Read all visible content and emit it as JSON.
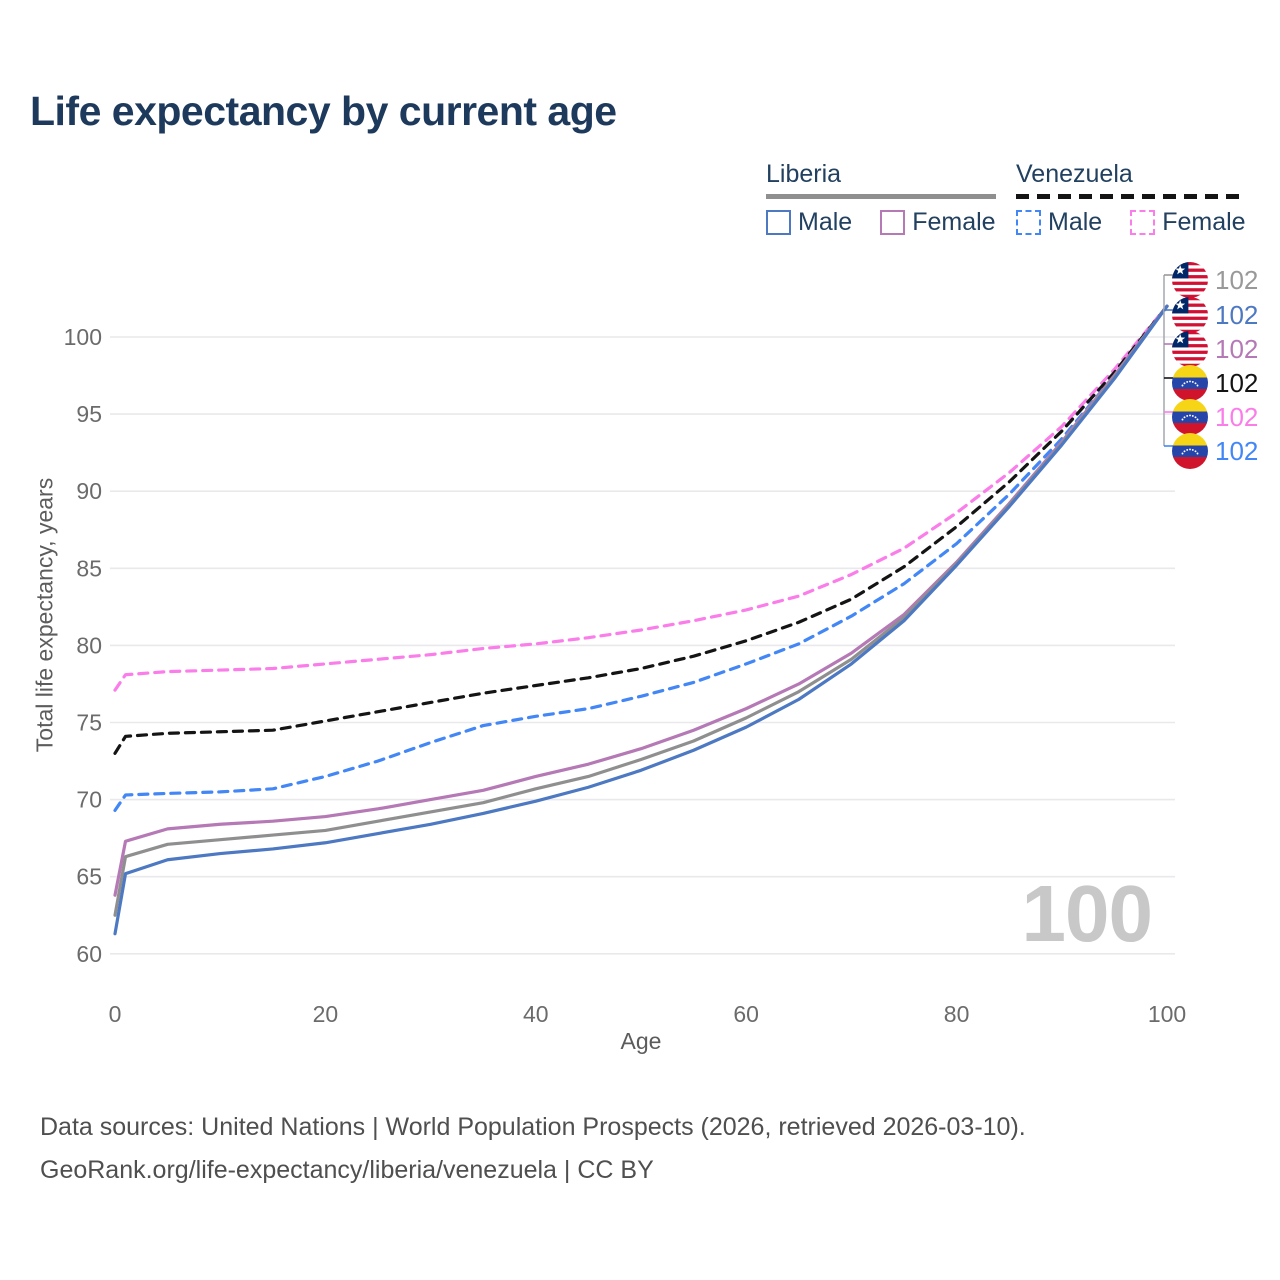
{
  "title": "Life expectancy by current age",
  "legend": {
    "groups": [
      {
        "country": "Liberia",
        "line_style": "solid",
        "header_line_color": "#8f8f8f",
        "items": [
          {
            "label": "Male",
            "color": "#4d78c2",
            "dashed": false
          },
          {
            "label": "Female",
            "color": "#b579b5",
            "dashed": false
          }
        ]
      },
      {
        "country": "Venezuela",
        "line_style": "dashed",
        "header_line_color": "#141414",
        "items": [
          {
            "label": "Male",
            "color": "#4287f5",
            "dashed": true
          },
          {
            "label": "Female",
            "color": "#fa7de9",
            "dashed": true
          }
        ]
      }
    ]
  },
  "chart_data": {
    "type": "line",
    "title": "Life expectancy by current age",
    "xlabel": "Age",
    "ylabel": "Total life expectancy, years",
    "xlim": [
      0,
      100
    ],
    "ylim": [
      60,
      100
    ],
    "x_ticks": [
      0,
      20,
      40,
      60,
      80,
      100
    ],
    "y_ticks": [
      60,
      65,
      70,
      75,
      80,
      85,
      90,
      95,
      100
    ],
    "grid": "horizontal",
    "legend_position": "top-right",
    "ages": [
      0,
      1,
      5,
      10,
      15,
      20,
      25,
      30,
      35,
      40,
      45,
      50,
      55,
      60,
      65,
      70,
      75,
      80,
      85,
      90,
      95,
      100
    ],
    "series": [
      {
        "name": "Venezuela — Female",
        "country": "Venezuela",
        "sex": "female",
        "color": "#fa7de9",
        "dashed": true,
        "values": [
          77.1,
          78.1,
          78.3,
          78.4,
          78.5,
          78.8,
          79.1,
          79.4,
          79.8,
          80.1,
          80.5,
          81.0,
          81.6,
          82.3,
          83.2,
          84.6,
          86.3,
          88.6,
          91.2,
          94.2,
          97.9,
          102
        ]
      },
      {
        "name": "Venezuela — Both sexes",
        "country": "Venezuela",
        "sex": "all",
        "color": "#141414",
        "dashed": true,
        "values": [
          73.0,
          74.1,
          74.3,
          74.4,
          74.5,
          75.1,
          75.7,
          76.3,
          76.9,
          77.4,
          77.9,
          78.5,
          79.3,
          80.3,
          81.5,
          83.0,
          85.1,
          87.7,
          90.6,
          93.9,
          97.7,
          102
        ]
      },
      {
        "name": "Venezuela — Male",
        "country": "Venezuela",
        "sex": "male",
        "color": "#4287f5",
        "dashed": true,
        "values": [
          69.3,
          70.3,
          70.4,
          70.5,
          70.7,
          71.5,
          72.5,
          73.7,
          74.8,
          75.4,
          75.9,
          76.7,
          77.6,
          78.8,
          80.1,
          81.9,
          84.0,
          86.6,
          89.8,
          93.4,
          97.5,
          102
        ]
      },
      {
        "name": "Liberia — Female",
        "country": "Liberia",
        "sex": "female",
        "color": "#b579b5",
        "dashed": false,
        "values": [
          63.8,
          67.3,
          68.1,
          68.4,
          68.6,
          68.9,
          69.4,
          70.0,
          70.6,
          71.5,
          72.3,
          73.3,
          74.5,
          75.9,
          77.5,
          79.5,
          82.0,
          85.4,
          89.2,
          93.2,
          97.5,
          102
        ]
      },
      {
        "name": "Liberia — Both sexes",
        "country": "Liberia",
        "sex": "all",
        "color": "#8f8f8f",
        "dashed": false,
        "values": [
          62.5,
          66.3,
          67.1,
          67.4,
          67.7,
          68.0,
          68.6,
          69.2,
          69.8,
          70.7,
          71.5,
          72.6,
          73.8,
          75.3,
          77.0,
          79.1,
          81.8,
          85.3,
          89.1,
          93.1,
          97.4,
          102
        ]
      },
      {
        "name": "Liberia — Male",
        "country": "Liberia",
        "sex": "male",
        "color": "#4d78c2",
        "dashed": false,
        "values": [
          61.3,
          65.2,
          66.1,
          66.5,
          66.8,
          67.2,
          67.8,
          68.4,
          69.1,
          69.9,
          70.8,
          71.9,
          73.2,
          74.7,
          76.5,
          78.8,
          81.6,
          85.2,
          89.0,
          93.0,
          97.3,
          102
        ]
      }
    ]
  },
  "end_labels": [
    {
      "flag": "liberia",
      "value": "102",
      "color": "#999999",
      "series": "Liberia — Both sexes"
    },
    {
      "flag": "liberia",
      "value": "102",
      "color": "#4d78c2",
      "series": "Liberia — Male"
    },
    {
      "flag": "liberia",
      "value": "102",
      "color": "#b579b5",
      "series": "Liberia — Female"
    },
    {
      "flag": "venezuela",
      "value": "102",
      "color": "#141414",
      "series": "Venezuela — Both sexes"
    },
    {
      "flag": "venezuela",
      "value": "102",
      "color": "#fa7de9",
      "series": "Venezuela — Female"
    },
    {
      "flag": "venezuela",
      "value": "102",
      "color": "#4287f5",
      "series": "Venezuela — Male"
    }
  ],
  "watermark": "100",
  "footer": {
    "line1": "Data sources: United Nations | World Population Prospects (2026, retrieved 2026-03-10).",
    "line2": "GeoRank.org/life-expectancy/liberia/venezuela | CC BY"
  },
  "colors": {
    "title": "#1d3a5c",
    "axis_text": "#6b6b6b",
    "gridline": "#e9e9ec",
    "watermark": "#c8c8c8",
    "connector": "#a8adb3"
  }
}
